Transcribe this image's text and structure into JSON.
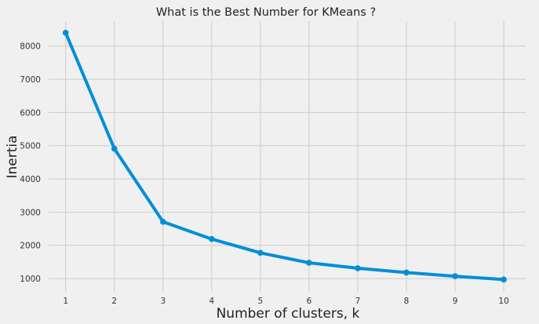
{
  "chart_data": {
    "type": "line",
    "title": "What is the Best Number for KMeans ?",
    "xlabel": "Number of clusters, k",
    "ylabel": "Inertia",
    "x": [
      1,
      2,
      3,
      4,
      5,
      6,
      7,
      8,
      9,
      10
    ],
    "series": [
      {
        "values": [
          8400,
          4910,
          2710,
          2190,
          1775,
          1475,
          1310,
          1180,
          1070,
          970
        ]
      }
    ],
    "xticks": [
      1,
      2,
      3,
      4,
      5,
      6,
      7,
      8,
      9,
      10
    ],
    "yticks": [
      1000,
      2000,
      3000,
      4000,
      5000,
      6000,
      7000,
      8000
    ],
    "xlim": [
      0.65,
      10.45
    ],
    "ylim": [
      600,
      8750
    ],
    "grid": true,
    "markers": true,
    "colors": {
      "line": "#008fd5",
      "background": "#f0f0f0",
      "grid": "#cbcbcb"
    }
  }
}
